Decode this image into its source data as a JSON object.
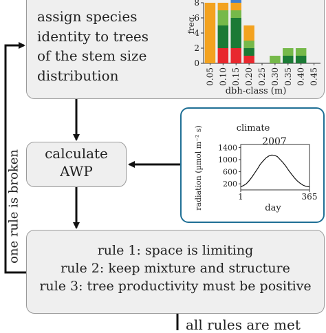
{
  "steps": {
    "assign_text": "assign species\nidentity to trees\nof the stem size\ndistribution",
    "awp_text": "calculate\nAWP",
    "rules": [
      "rule 1: space is limiting",
      "rule 2: keep mixture and structure",
      "rule 3: tree productivity must be positive"
    ],
    "loop_label": "one rule is broken",
    "bottom_text": "all rules are met"
  },
  "chart_data": [
    {
      "type": "bar",
      "stacked": true,
      "ylabel": "freq.",
      "xlabel": "dbh-class (m)",
      "categories": [
        "0.05",
        "0.10",
        "0.15",
        "0.20",
        "0.25",
        "0.30",
        "0.35",
        "0.40",
        "0.45"
      ],
      "ylim": [
        0,
        8
      ],
      "yticks": [
        0,
        2,
        4,
        6,
        8
      ],
      "series": [
        {
          "color": "#e8282e",
          "values": [
            0,
            2,
            2,
            1,
            0,
            0,
            0,
            0,
            0
          ]
        },
        {
          "color": "#1b7a35",
          "values": [
            0,
            3,
            4,
            1,
            0,
            0,
            1,
            1,
            0
          ]
        },
        {
          "color": "#76b94a",
          "values": [
            0,
            2,
            1,
            1,
            0,
            1,
            1,
            1,
            0
          ]
        },
        {
          "color": "#f3a21f",
          "values": [
            8,
            1,
            1,
            2,
            0,
            0,
            0,
            0,
            0
          ]
        },
        {
          "color": "#3f7fcf",
          "values": [
            0,
            0,
            1,
            0,
            0,
            0,
            0,
            0,
            0
          ]
        }
      ]
    },
    {
      "type": "line",
      "title": "climate",
      "subtitle": "2007",
      "ylabel": "radiation (µmol m⁻² s)",
      "xlabel": "day",
      "xticks": [
        "1",
        "365"
      ],
      "yticks": [
        200,
        600,
        1000,
        1400
      ],
      "xlim": [
        1,
        365
      ],
      "ylim": [
        0,
        1500
      ],
      "x": [
        1,
        15,
        30,
        45,
        60,
        75,
        90,
        105,
        120,
        135,
        150,
        165,
        180,
        195,
        210,
        225,
        240,
        255,
        270,
        285,
        300,
        315,
        330,
        345,
        365
      ],
      "y": [
        100,
        140,
        200,
        300,
        420,
        560,
        700,
        850,
        960,
        1060,
        1120,
        1150,
        1140,
        1100,
        1000,
        900,
        780,
        640,
        520,
        400,
        300,
        220,
        160,
        120,
        100
      ]
    }
  ]
}
